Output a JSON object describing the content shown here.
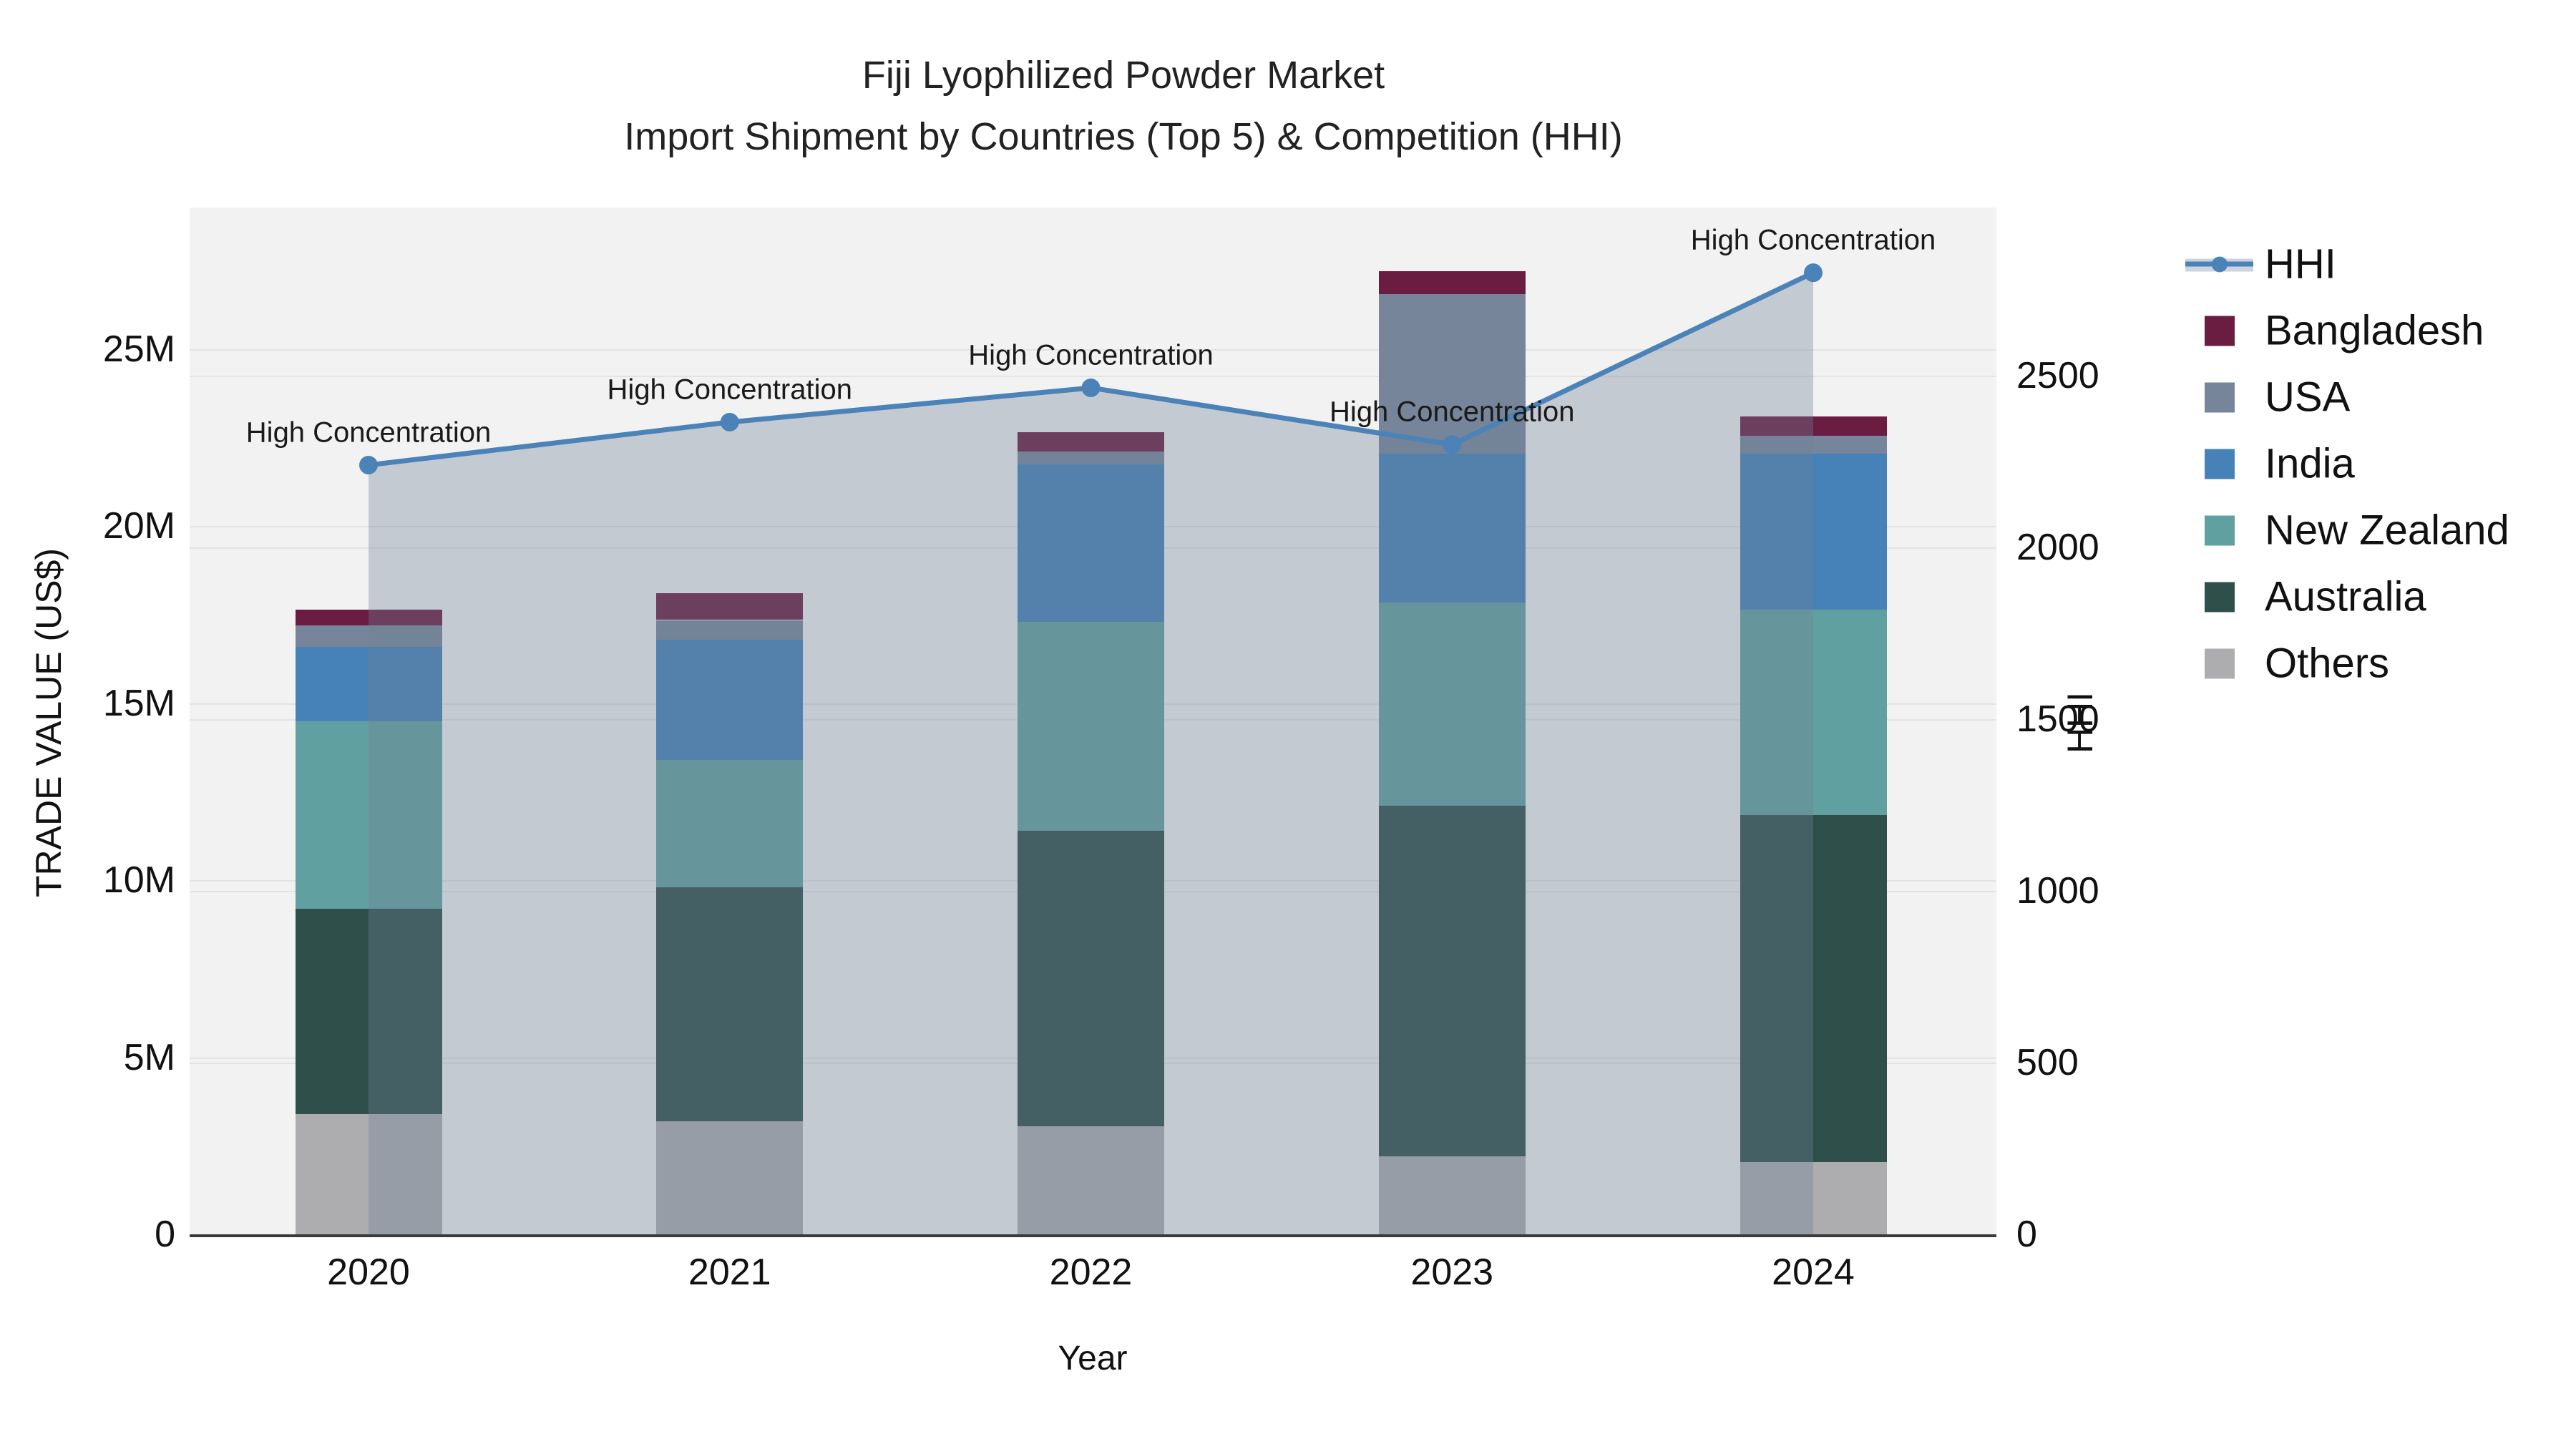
{
  "title": {
    "line1": "Fiji Lyophilized Powder Market",
    "line2": "Import Shipment by Countries (Top 5) & Competition (HHI)"
  },
  "axes": {
    "x": {
      "title": "Year"
    },
    "y_left": {
      "title": "TRADE VALUE (US$)",
      "ticks": [
        {
          "label": "0",
          "value_m": 0
        },
        {
          "label": "5M",
          "value_m": 5
        },
        {
          "label": "10M",
          "value_m": 10
        },
        {
          "label": "15M",
          "value_m": 15
        },
        {
          "label": "20M",
          "value_m": 20
        },
        {
          "label": "25M",
          "value_m": 25
        }
      ]
    },
    "y_right": {
      "title": "HHI",
      "ticks": [
        {
          "label": "0",
          "value": 0
        },
        {
          "label": "500",
          "value": 500
        },
        {
          "label": "1000",
          "value": 1000
        },
        {
          "label": "1500",
          "value": 1500
        },
        {
          "label": "2000",
          "value": 2000
        },
        {
          "label": "2500",
          "value": 2500
        }
      ]
    }
  },
  "chart_data": {
    "type": "bar",
    "subtype": "stacked-bars-with-line-area-overlay",
    "title": "Fiji Lyophilized Powder Market — Import Shipment by Countries (Top 5) & Competition (HHI)",
    "categories": [
      "2020",
      "2021",
      "2022",
      "2023",
      "2024"
    ],
    "unit_left": "Trade value, US$ millions",
    "unit_right": "HHI index",
    "ylim_left_m": [
      0,
      29
    ],
    "ylim_right": [
      0,
      2990
    ],
    "grid": "horizontal",
    "legend_position": "right",
    "series": [
      {
        "name": "Others",
        "color": "#adadaf",
        "values_m": [
          3.4,
          3.2,
          3.05,
          2.2,
          2.05
        ]
      },
      {
        "name": "Australia",
        "color": "#2f4f4a",
        "values_m": [
          5.8,
          6.6,
          8.35,
          9.9,
          9.8
        ]
      },
      {
        "name": "New Zealand",
        "color": "#61a0a0",
        "values_m": [
          5.3,
          3.6,
          5.9,
          5.75,
          5.8
        ]
      },
      {
        "name": "India",
        "color": "#4682b8",
        "values_m": [
          2.1,
          3.4,
          4.45,
          4.2,
          4.4
        ]
      },
      {
        "name": "USA",
        "color": "#76859a",
        "values_m": [
          0.6,
          0.55,
          0.35,
          4.5,
          0.5
        ]
      },
      {
        "name": "Bangladesh",
        "color": "#6b1c41",
        "values_m": [
          0.45,
          0.75,
          0.55,
          0.65,
          0.55
        ]
      }
    ],
    "stack_totals_m": [
      17.65,
      18.1,
      22.65,
      27.2,
      23.1
    ],
    "line": {
      "name": "HHI",
      "color": "#4b83b8",
      "area_fill_color": "rgba(112,128,150,0.35)",
      "values": [
        2240,
        2365,
        2465,
        2300,
        2800
      ],
      "annotation": "High Concentration"
    }
  },
  "legend": {
    "items": [
      {
        "label": "HHI",
        "type": "line",
        "color": "#4b83b8"
      },
      {
        "label": "Bangladesh",
        "type": "square",
        "color": "#6b1c41"
      },
      {
        "label": "USA",
        "type": "square",
        "color": "#76859a"
      },
      {
        "label": "India",
        "type": "square",
        "color": "#4682b8"
      },
      {
        "label": "New Zealand",
        "type": "square",
        "color": "#61a0a0"
      },
      {
        "label": "Australia",
        "type": "square",
        "color": "#2f4f4a"
      },
      {
        "label": "Others",
        "type": "square",
        "color": "#adadaf"
      }
    ]
  }
}
